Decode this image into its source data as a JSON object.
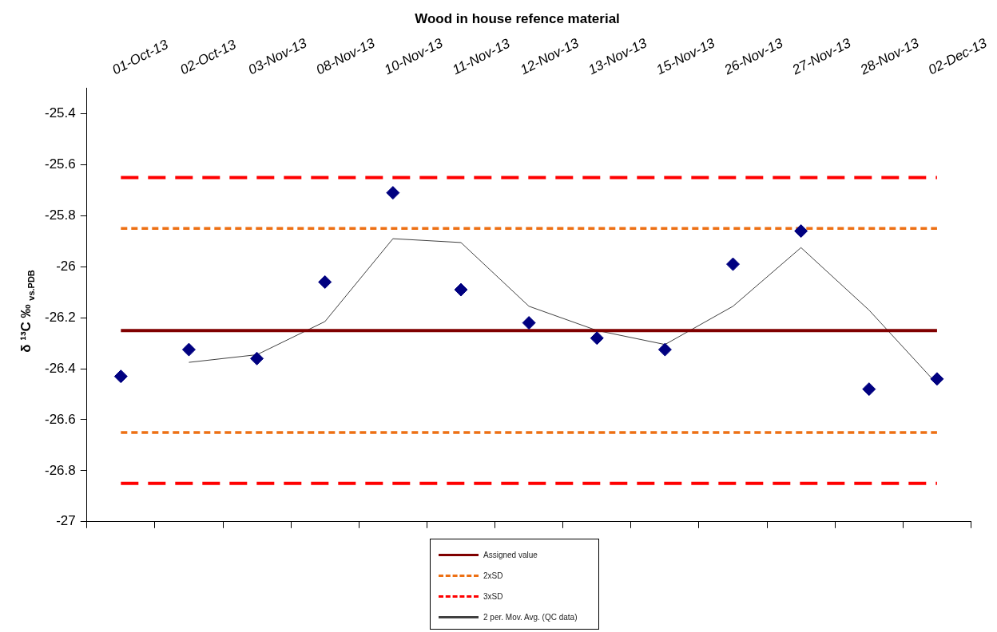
{
  "chart_data": {
    "type": "line",
    "title": "Wood in house refence material",
    "ylabel": "δ ¹³C ‰ $_{vs.PDB}$",
    "categories": [
      "01-Oct-13",
      "02-Oct-13",
      "03-Nov-13",
      "08-Nov-13",
      "10-Nov-13",
      "11-Nov-13",
      "12-Nov-13",
      "13-Nov-13",
      "15-Nov-13",
      "26-Nov-13",
      "27-Nov-13",
      "28-Nov-13",
      "02-Dec-13"
    ],
    "series": [
      {
        "type": "scatter",
        "color": "#000080",
        "marker": "diamond",
        "values": [
          -26.43,
          -26.325,
          -26.36,
          -26.06,
          -25.71,
          -26.09,
          -26.22,
          -26.28,
          -26.325,
          -25.99,
          -25.86,
          -26.48,
          -26.44
        ]
      },
      {
        "name": "Assigned value",
        "color": "#800000",
        "line_style": "solid",
        "marker": "none",
        "values": [
          -26.25,
          -26.25,
          -26.25,
          -26.25,
          -26.25,
          -26.25,
          -26.25,
          -26.25,
          -26.25,
          -26.25,
          -26.25,
          -26.25,
          -26.25
        ]
      },
      {
        "name": "2xSD",
        "color": "#ed7014",
        "line_style": "dotted",
        "marker": "none",
        "values": [
          -25.85,
          -25.85,
          -25.85,
          -25.85,
          -25.85,
          -25.85,
          -25.85,
          -25.85,
          -25.85,
          -25.85,
          -25.85,
          -25.85,
          -25.85
        ]
      },
      {
        "color": "#ed7014",
        "line_style": "dotted",
        "marker": "none",
        "values": [
          -26.65,
          -26.65,
          -26.65,
          -26.65,
          -26.65,
          -26.65,
          -26.65,
          -26.65,
          -26.65,
          -26.65,
          -26.65,
          -26.65,
          -26.65
        ]
      },
      {
        "name": "3xSD",
        "color": "#ff0000",
        "line_style": "dashed",
        "marker": "none",
        "values": [
          -25.65,
          -25.65,
          -25.65,
          -25.65,
          -25.65,
          -25.65,
          -25.65,
          -25.65,
          -25.65,
          -25.65,
          -25.65,
          -25.65,
          -25.65
        ]
      },
      {
        "color": "#ff0000",
        "line_style": "dashed",
        "marker": "none",
        "values": [
          -26.85,
          -26.85,
          -26.85,
          -26.85,
          -26.85,
          -26.85,
          -26.85,
          -26.85,
          -26.85,
          -26.85,
          -26.85,
          -26.85,
          -26.85
        ]
      },
      {
        "name": "2 per. Mov. Avg. (QC data)",
        "color": "#404040",
        "line_style": "solid",
        "marker": "none",
        "values": [
          null,
          -26.375,
          -26.345,
          -26.215,
          -25.89,
          -25.905,
          -26.155,
          -26.25,
          -26.305,
          -26.155,
          -25.925,
          -26.17,
          -26.46
        ]
      }
    ],
    "ylim": [
      -27,
      -25.3
    ],
    "yticks": [
      -27,
      -26.8,
      -26.6,
      -26.4,
      -26.2,
      -26,
      -25.8,
      -25.6,
      -25.4
    ],
    "grid": false,
    "legend": "bottom"
  }
}
